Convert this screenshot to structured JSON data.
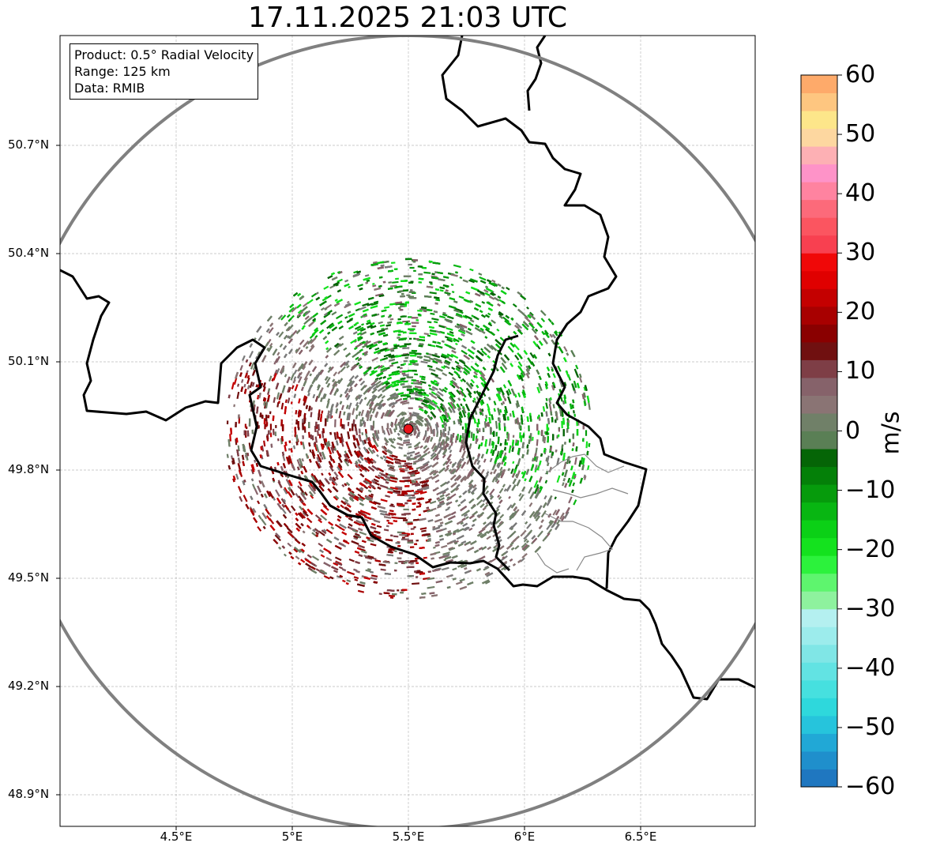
{
  "title": "17.11.2025 21:03 UTC",
  "info": {
    "product": "Product: 0.5° Radial Velocity",
    "range": "Range: 125 km",
    "data": "Data: RMIB"
  },
  "chart_data": {
    "type": "heatmap",
    "title": "17.11.2025 21:03 UTC",
    "projection": "lat-lon",
    "lon_range": [
      4.0,
      7.0
    ],
    "lat_range": [
      48.8,
      51.0
    ],
    "x_ticks": [
      4.5,
      5.0,
      5.5,
      6.0,
      6.5
    ],
    "x_tick_labels": [
      "4.5°E",
      "5°E",
      "5.5°E",
      "6°E",
      "6.5°E"
    ],
    "y_ticks": [
      48.9,
      49.2,
      49.5,
      49.8,
      50.1,
      50.4,
      50.7
    ],
    "y_tick_labels": [
      "48.9°N",
      "49.2°N",
      "49.5°N",
      "49.8°N",
      "50.1°N",
      "50.4°N",
      "50.7°N"
    ],
    "grid": true,
    "radar_site": {
      "lon": 5.505,
      "lat": 49.914
    },
    "range_km": 125,
    "colorbar": {
      "label": "m/s",
      "min": -60,
      "max": 60,
      "ticks": [
        60,
        50,
        40,
        30,
        20,
        10,
        0,
        -10,
        -20,
        -30,
        -40,
        -50,
        -60
      ],
      "tick_labels": [
        "60",
        "50",
        "40",
        "30",
        "20",
        "10",
        "0",
        "−10",
        "−20",
        "−30",
        "−40",
        "−50",
        "−60"
      ]
    },
    "velocity_field": [
      {
        "region": "northeast",
        "values_ms": "-5 to -25",
        "description": "inbound (green)"
      },
      {
        "region": "southwest",
        "values_ms": "10 to 25",
        "description": "outbound (red)"
      },
      {
        "region": "center/southeast",
        "values_ms": "-5 to 5",
        "description": "near zero (grey/mauve)"
      }
    ]
  }
}
